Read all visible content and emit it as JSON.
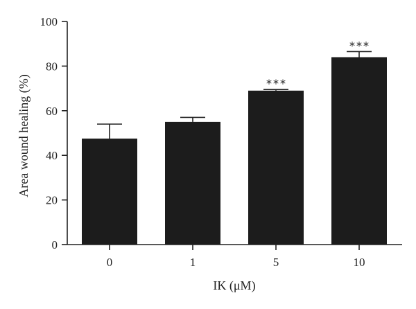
{
  "chart_data": {
    "type": "bar",
    "categories": [
      "0",
      "1",
      "5",
      "10"
    ],
    "values": [
      47.5,
      55,
      69,
      84
    ],
    "errors": [
      6.5,
      2,
      0.5,
      2.5
    ],
    "significance": [
      "",
      "",
      "***",
      "***"
    ],
    "title": "",
    "xlabel": "IK (μM)",
    "ylabel": "Area wound healing (%)",
    "ylim": [
      0,
      100
    ],
    "yticks": [
      0,
      20,
      40,
      60,
      80,
      100
    ],
    "grid": false,
    "bar_color": "#1c1c1c"
  }
}
